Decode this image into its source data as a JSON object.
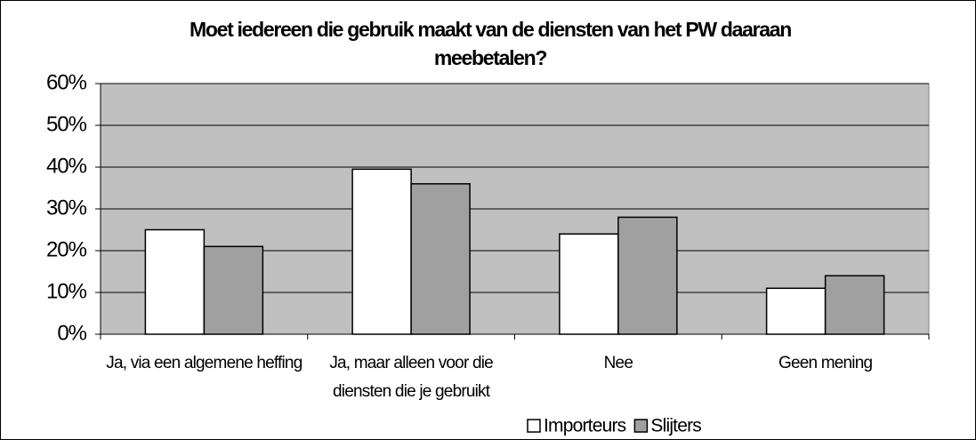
{
  "chart_data": {
    "type": "bar",
    "title": "Moet iedereen die gebruik maakt van de diensten van het PW daaraan meebetalen?",
    "categories": [
      "Ja, via een algemene heffing",
      "Ja, maar alleen voor die diensten die je gebruikt",
      "Nee",
      "Geen mening"
    ],
    "series": [
      {
        "name": "Importeurs",
        "color": "#ffffff",
        "values": [
          25,
          39.5,
          24,
          11
        ]
      },
      {
        "name": "Slijters",
        "color": "#a0a0a0",
        "values": [
          21,
          36,
          28,
          14
        ]
      }
    ],
    "ylim": [
      0,
      60
    ],
    "yticks": [
      {
        "value": 0,
        "label": "0%"
      },
      {
        "value": 10,
        "label": "10%"
      },
      {
        "value": 20,
        "label": "20%"
      },
      {
        "value": 30,
        "label": "30%"
      },
      {
        "value": 40,
        "label": "40%"
      },
      {
        "value": 50,
        "label": "50%"
      },
      {
        "value": 60,
        "label": "60%"
      }
    ],
    "grid": true,
    "plot_background": "#c0c0c0",
    "legend": "bottom"
  }
}
